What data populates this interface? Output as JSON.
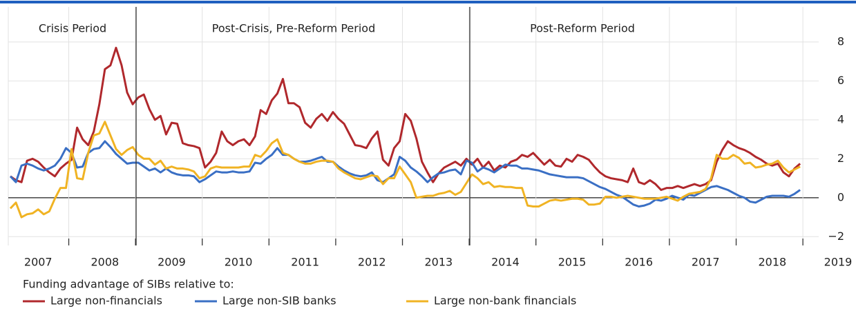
{
  "chart_data": {
    "type": "line",
    "annotations": [
      "Crisis Period",
      "Post-Crisis, Pre-Reform Period",
      "Post-Reform Period"
    ],
    "legend_title": "Funding advantage of SIBs relative to:",
    "categories": [
      null,
      null,
      null,
      null,
      null,
      "2007",
      null,
      null,
      null,
      null,
      null,
      null,
      null,
      null,
      null,
      null,
      null,
      "2008",
      null,
      null,
      null,
      null,
      null,
      null,
      null,
      null,
      null,
      null,
      null,
      "2009",
      null,
      null,
      null,
      null,
      null,
      null,
      null,
      null,
      null,
      null,
      null,
      "2010",
      null,
      null,
      null,
      null,
      null,
      null,
      null,
      null,
      null,
      null,
      null,
      "2011",
      null,
      null,
      null,
      null,
      null,
      null,
      null,
      null,
      null,
      null,
      null,
      "2012",
      null,
      null,
      null,
      null,
      null,
      null,
      null,
      null,
      null,
      null,
      null,
      "2013",
      null,
      null,
      null,
      null,
      null,
      null,
      null,
      null,
      null,
      null,
      null,
      "2014",
      null,
      null,
      null,
      null,
      null,
      null,
      null,
      null,
      null,
      null,
      null,
      "2015",
      null,
      null,
      null,
      null,
      null,
      null,
      null,
      null,
      null,
      null,
      null,
      "2016",
      null,
      null,
      null,
      null,
      null,
      null,
      null,
      null,
      null,
      null,
      null,
      "2017",
      null,
      null,
      null,
      null,
      null,
      null,
      null,
      null,
      null,
      null,
      null,
      "2018",
      null,
      null,
      null,
      null,
      null,
      null,
      null,
      null,
      null,
      null,
      null,
      "2019"
    ],
    "series": [
      {
        "name": "Large non-financials",
        "color": "#b0282c",
        "values": [
          1.1,
          0.9,
          0.8,
          1.9,
          2.0,
          1.85,
          1.55,
          1.3,
          1.1,
          1.5,
          1.75,
          1.95,
          3.6,
          3.0,
          2.7,
          3.4,
          4.8,
          6.6,
          6.8,
          7.7,
          6.8,
          5.4,
          4.8,
          5.15,
          5.3,
          4.55,
          4.0,
          4.2,
          3.25,
          3.85,
          3.8,
          2.8,
          2.7,
          2.65,
          2.55,
          1.55,
          1.85,
          2.3,
          3.4,
          2.9,
          2.7,
          2.9,
          3.0,
          2.7,
          3.15,
          4.5,
          4.3,
          5.0,
          5.35,
          6.1,
          4.85,
          4.85,
          4.65,
          3.85,
          3.6,
          4.05,
          4.3,
          3.95,
          4.4,
          4.05,
          3.8,
          3.25,
          2.7,
          2.65,
          2.55,
          3.05,
          3.4,
          1.95,
          1.65,
          2.55,
          2.9,
          4.3,
          3.95,
          3.05,
          1.85,
          1.3,
          0.8,
          1.25,
          1.55,
          1.7,
          1.85,
          1.65,
          2.0,
          1.7,
          2.0,
          1.55,
          1.85,
          1.4,
          1.65,
          1.55,
          1.85,
          1.95,
          2.2,
          2.1,
          2.3,
          2.0,
          1.7,
          1.95,
          1.65,
          1.6,
          2.0,
          1.85,
          2.2,
          2.1,
          1.95,
          1.6,
          1.3,
          1.1,
          1.0,
          0.95,
          0.9,
          0.8,
          1.5,
          0.8,
          0.7,
          0.9,
          0.7,
          0.4,
          0.5,
          0.5,
          0.6,
          0.5,
          0.6,
          0.7,
          0.6,
          0.7,
          0.9,
          1.85,
          2.45,
          2.9,
          2.7,
          2.55,
          2.45,
          2.3,
          2.1,
          1.95,
          1.75,
          1.65,
          1.75,
          1.3,
          1.1,
          1.5,
          1.75,
          null,
          null,
          null,
          null,
          null,
          null,
          null
        ]
      },
      {
        "name": "Large non-SIB banks",
        "color": "#3a6fc4",
        "values": [
          1.1,
          0.8,
          1.65,
          1.75,
          1.65,
          1.5,
          1.4,
          1.5,
          1.65,
          2.0,
          2.55,
          2.3,
          1.55,
          1.6,
          2.3,
          2.5,
          2.55,
          2.9,
          2.6,
          2.25,
          2.0,
          1.75,
          1.8,
          1.8,
          1.6,
          1.4,
          1.5,
          1.3,
          1.5,
          1.3,
          1.2,
          1.15,
          1.15,
          1.1,
          0.8,
          0.95,
          1.15,
          1.35,
          1.3,
          1.3,
          1.35,
          1.3,
          1.3,
          1.35,
          1.8,
          1.75,
          2.0,
          2.2,
          2.55,
          2.2,
          2.2,
          2.0,
          1.85,
          1.85,
          1.9,
          2.0,
          2.1,
          1.85,
          1.85,
          1.6,
          1.4,
          1.25,
          1.15,
          1.1,
          1.15,
          1.3,
          0.9,
          0.8,
          1.0,
          1.2,
          2.1,
          1.9,
          1.55,
          1.35,
          1.1,
          0.8,
          1.05,
          1.25,
          1.3,
          1.4,
          1.45,
          1.2,
          1.9,
          1.8,
          1.35,
          1.55,
          1.45,
          1.3,
          1.5,
          1.7,
          1.65,
          1.65,
          1.5,
          1.5,
          1.45,
          1.4,
          1.3,
          1.2,
          1.15,
          1.1,
          1.05,
          1.05,
          1.05,
          1.0,
          0.85,
          0.7,
          0.55,
          0.45,
          0.3,
          0.15,
          0.05,
          -0.15,
          -0.35,
          -0.45,
          -0.4,
          -0.3,
          -0.1,
          -0.15,
          -0.05,
          0.1,
          0.0,
          -0.1,
          0.15,
          0.1,
          0.25,
          0.4,
          0.55,
          0.6,
          0.5,
          0.4,
          0.25,
          0.1,
          0.0,
          -0.2,
          -0.25,
          -0.1,
          0.05,
          0.1,
          0.1,
          0.1,
          0.05,
          0.2,
          0.4,
          null,
          null,
          null,
          null,
          null,
          null,
          null
        ]
      },
      {
        "name": "Large non-bank financials",
        "color": "#f0b323",
        "values": [
          -0.55,
          -0.25,
          -1.0,
          -0.85,
          -0.8,
          -0.6,
          -0.85,
          -0.7,
          -0.05,
          0.5,
          0.5,
          2.5,
          1.0,
          0.95,
          2.3,
          3.2,
          3.3,
          3.9,
          3.2,
          2.5,
          2.2,
          2.45,
          2.6,
          2.2,
          2.0,
          2.0,
          1.7,
          1.9,
          1.5,
          1.6,
          1.5,
          1.5,
          1.45,
          1.35,
          1.0,
          1.1,
          1.5,
          1.6,
          1.55,
          1.55,
          1.55,
          1.55,
          1.6,
          1.6,
          2.2,
          2.1,
          2.4,
          2.8,
          3.0,
          2.3,
          2.2,
          2.0,
          1.85,
          1.75,
          1.75,
          1.85,
          1.9,
          1.9,
          1.85,
          1.5,
          1.3,
          1.15,
          1.0,
          0.95,
          1.05,
          1.15,
          1.1,
          0.7,
          1.0,
          1.0,
          1.6,
          1.2,
          0.8,
          0.0,
          0.05,
          0.1,
          0.1,
          0.2,
          0.25,
          0.35,
          0.15,
          0.3,
          0.75,
          1.2,
          1.0,
          0.7,
          0.8,
          0.55,
          0.6,
          0.55,
          0.55,
          0.5,
          0.5,
          -0.4,
          -0.45,
          -0.45,
          -0.3,
          -0.15,
          -0.1,
          -0.15,
          -0.1,
          -0.05,
          -0.05,
          -0.1,
          -0.35,
          -0.35,
          -0.3,
          0.05,
          0.05,
          0.0,
          0.05,
          0.1,
          0.05,
          0.0,
          -0.05,
          -0.05,
          -0.05,
          0.0,
          0.05,
          -0.05,
          -0.15,
          0.05,
          0.2,
          0.25,
          0.3,
          0.45,
          1.0,
          2.2,
          2.0,
          2.0,
          2.2,
          2.05,
          1.75,
          1.8,
          1.55,
          1.6,
          1.7,
          1.75,
          1.9,
          1.55,
          1.3,
          1.45,
          1.6,
          null,
          null,
          null,
          null,
          null,
          null,
          null
        ]
      }
    ],
    "ylim": [
      -2.45,
      9.8
    ],
    "yticks": [
      {
        "value": -2,
        "label": "−2"
      },
      0,
      2,
      4,
      6,
      8
    ],
    "grid": true
  }
}
